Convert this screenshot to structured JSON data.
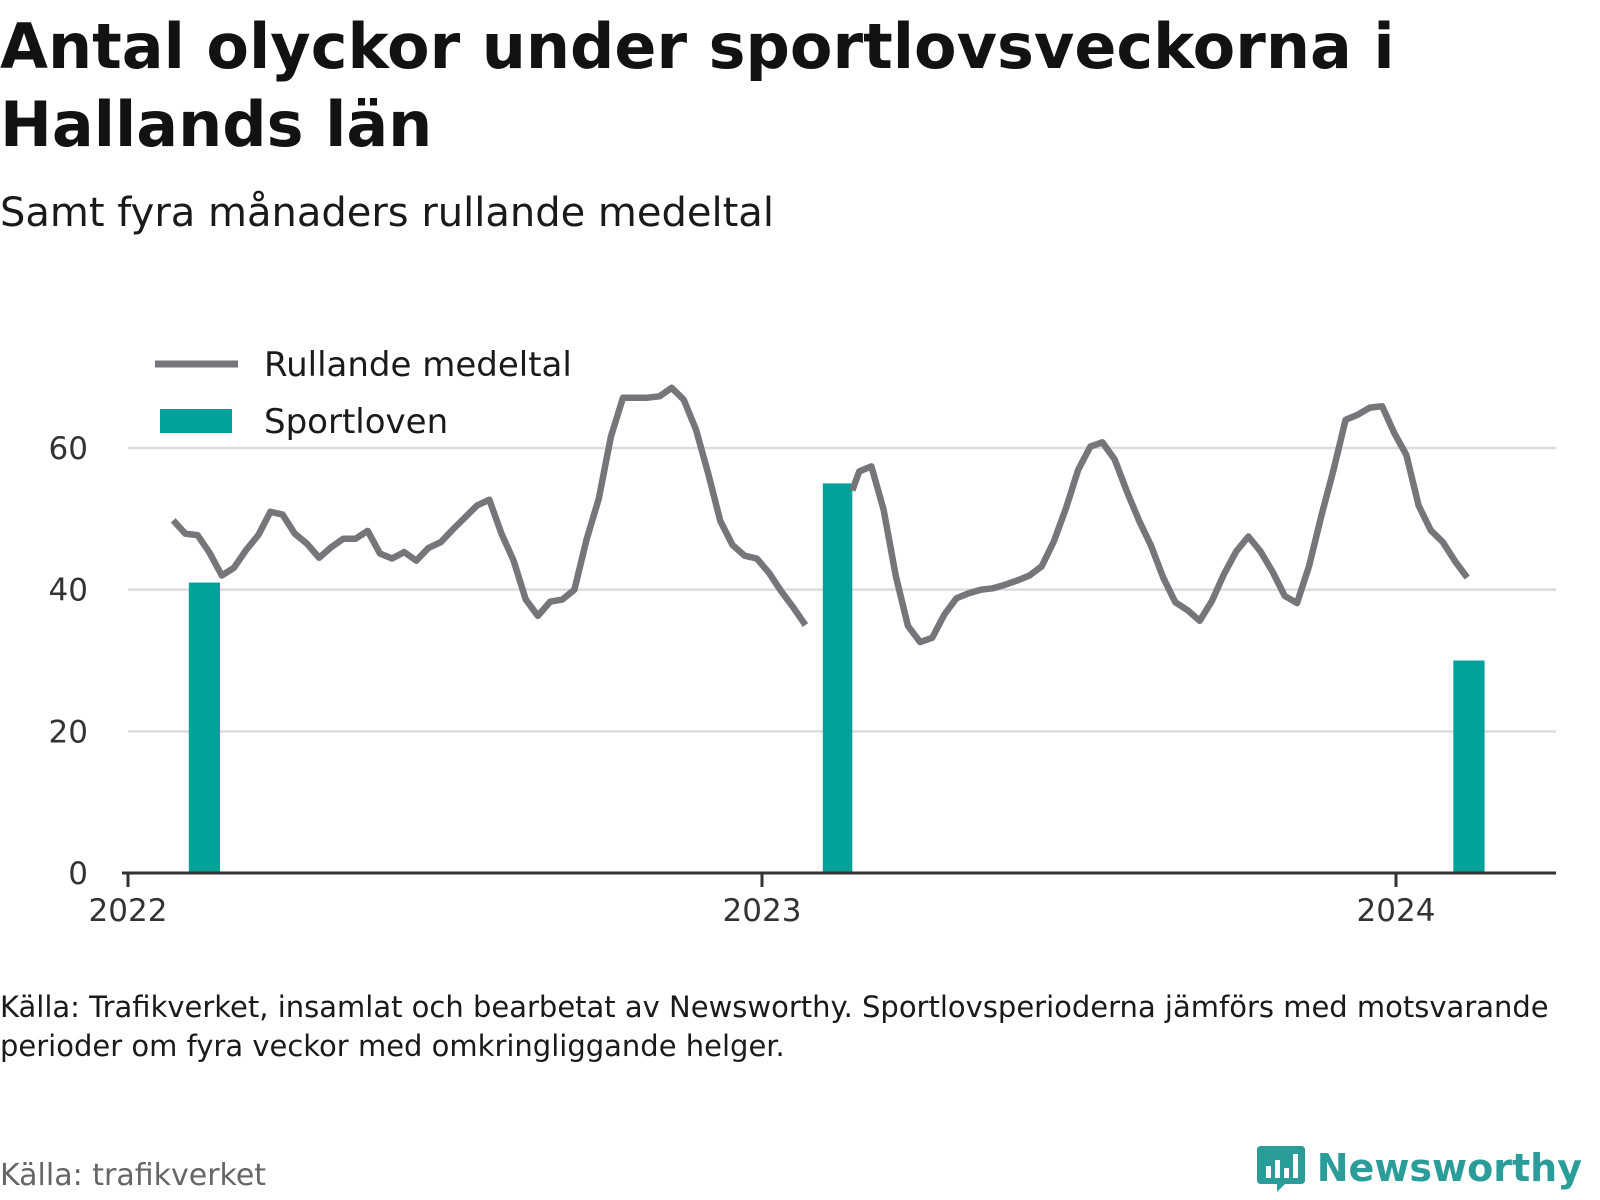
{
  "header": {
    "title": "Antal olyckor under sportlovsveckorna i Hallands län",
    "subtitle": "Samt fyra månaders rullande medeltal"
  },
  "footer": {
    "note": "Källa: Trafikverket, insamlat och bearbetat av Newsworthy. Sportlovsperioderna jämförs med motsvarande perioder om fyra veckor med omkringliggande helger.",
    "source": "Källa: trafikverket",
    "brand": "Newsworthy"
  },
  "colors": {
    "line": "#75757a",
    "bar": "#00a29a",
    "grid": "#dcdcdc",
    "axis": "#333333",
    "brand": "#2a9d9a"
  },
  "icons": {
    "logo": "bar-chart-speech-bubble-icon"
  },
  "chart_data": {
    "type": "bar+line",
    "title": "Antal olyckor under sportlovsveckorna i Hallands län",
    "subtitle": "Samt fyra månaders rullande medeltal",
    "xlim": [
      "2022-01-01",
      "2024-04-01"
    ],
    "ylim": [
      0,
      70
    ],
    "yticks": [
      0,
      20,
      40,
      60
    ],
    "xticks": [
      {
        "label": "2022",
        "date": "2022-01-01"
      },
      {
        "label": "2023",
        "date": "2023-01-01"
      },
      {
        "label": "2024",
        "date": "2024-01-01"
      }
    ],
    "grid": true,
    "legend": {
      "position": "top-left",
      "entries": [
        {
          "label": "Rullande medeltal",
          "kind": "line"
        },
        {
          "label": "Sportloven",
          "kind": "bar"
        }
      ]
    },
    "series": [
      {
        "name": "Sportloven",
        "type": "bar",
        "x": [
          {
            "start": "2022-02-05",
            "end": "2022-02-23"
          },
          {
            "start": "2023-02-05",
            "end": "2023-02-22"
          },
          {
            "start": "2024-02-03",
            "end": "2024-02-21"
          }
        ],
        "values": [
          41,
          55,
          30
        ]
      },
      {
        "name": "Rullande medeltal",
        "type": "line",
        "segments": [
          {
            "x": [
              "2022-01-27",
              "2022-02-03",
              "2022-02-10",
              "2022-02-17",
              "2022-02-24",
              "2022-03-03",
              "2022-03-10",
              "2022-03-17",
              "2022-03-24",
              "2022-03-31",
              "2022-04-07",
              "2022-04-14",
              "2022-04-21",
              "2022-04-28",
              "2022-05-05",
              "2022-05-12",
              "2022-05-19",
              "2022-05-26",
              "2022-06-02",
              "2022-06-09",
              "2022-06-16",
              "2022-06-23",
              "2022-06-30",
              "2022-07-07",
              "2022-07-14",
              "2022-07-21",
              "2022-07-28",
              "2022-08-04",
              "2022-08-11",
              "2022-08-18",
              "2022-08-25",
              "2022-09-01",
              "2022-09-08",
              "2022-09-15",
              "2022-09-22",
              "2022-09-29",
              "2022-10-06",
              "2022-10-13",
              "2022-10-20",
              "2022-10-27",
              "2022-11-03",
              "2022-11-10",
              "2022-11-17",
              "2022-11-24",
              "2022-12-01",
              "2022-12-08",
              "2022-12-15",
              "2022-12-22",
              "2022-12-29",
              "2023-01-05",
              "2023-01-12",
              "2023-01-19",
              "2023-01-26"
            ],
            "y": [
              49.8,
              47.9,
              47.7,
              45.2,
              42,
              43.1,
              45.6,
              47.7,
              51,
              50.6,
              47.9,
              46.5,
              44.5,
              46,
              47.2,
              47.2,
              48.3,
              45.1,
              44.4,
              45.3,
              44.1,
              45.9,
              46.7,
              48.5,
              50.2,
              51.9,
              52.7,
              47.9,
              44.1,
              38.6,
              36.3,
              38.3,
              38.6,
              40,
              47.1,
              52.8,
              61.6,
              67.1,
              67.1,
              67.1,
              67.3,
              68.5,
              66.8,
              62.6,
              56.4,
              49.7,
              46.3,
              44.8,
              44.4,
              42.4,
              39.8,
              37.5,
              35
            ]
          },
          {
            "x": [
              "2023-02-22",
              "2023-02-26",
              "2023-03-05",
              "2023-03-12",
              "2023-03-19",
              "2023-03-26",
              "2023-04-02",
              "2023-04-09",
              "2023-04-16",
              "2023-04-23",
              "2023-04-30",
              "2023-05-07",
              "2023-05-14",
              "2023-05-21",
              "2023-05-28",
              "2023-06-04",
              "2023-06-11",
              "2023-06-18",
              "2023-06-25",
              "2023-07-02",
              "2023-07-09",
              "2023-07-16",
              "2023-07-23",
              "2023-07-30",
              "2023-08-06",
              "2023-08-13",
              "2023-08-20",
              "2023-08-27",
              "2023-09-03",
              "2023-09-10",
              "2023-09-17",
              "2023-09-24",
              "2023-10-01",
              "2023-10-08",
              "2023-10-15",
              "2023-10-22",
              "2023-10-29",
              "2023-11-05",
              "2023-11-12",
              "2023-11-19",
              "2023-11-26",
              "2023-12-03",
              "2023-12-10",
              "2023-12-17",
              "2023-12-24",
              "2023-12-31",
              "2024-01-07",
              "2024-01-14",
              "2024-01-21",
              "2024-01-28",
              "2024-02-04",
              "2024-02-11"
            ],
            "y": [
              54,
              56.7,
              57.4,
              51.3,
              42,
              34.9,
              32.6,
              33.2,
              36.5,
              38.8,
              39.5,
              40,
              40.2,
              40.7,
              41.3,
              42,
              43.3,
              46.8,
              51.5,
              56.9,
              60.2,
              60.8,
              58.4,
              53.9,
              49.8,
              46.2,
              41.7,
              38.2,
              37.1,
              35.6,
              38.4,
              42.2,
              45.4,
              47.5,
              45.4,
              42.5,
              39.1,
              38.1,
              43.4,
              50.4,
              56.9,
              64,
              64.7,
              65.7,
              65.9,
              62.1,
              59,
              51.9,
              48.4,
              46.7,
              44,
              41.7
            ]
          }
        ]
      }
    ]
  }
}
